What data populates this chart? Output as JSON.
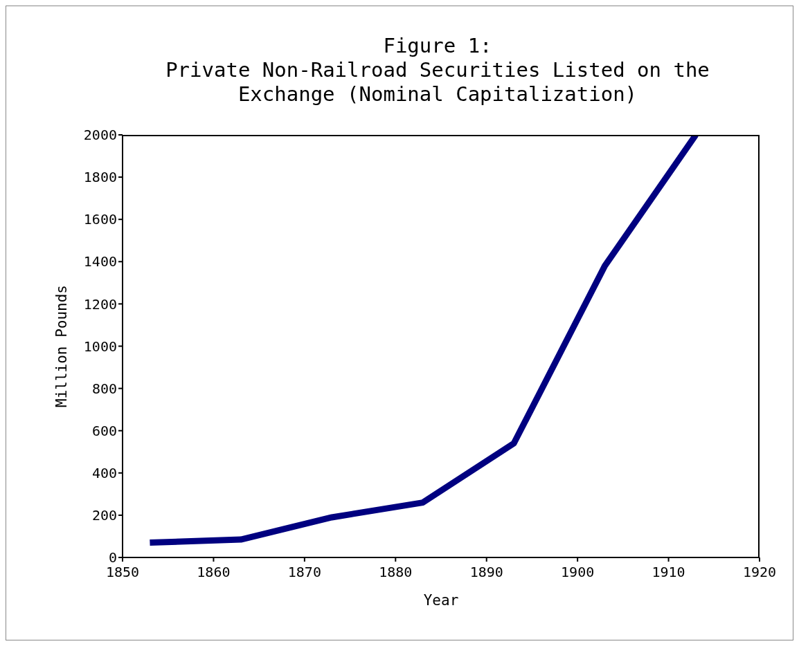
{
  "chart_data": {
    "type": "line",
    "title": "Figure 1:\nPrivate Non-Railroad Securities Listed on the\nExchange (Nominal Capitalization)",
    "xlabel": "Year",
    "ylabel": "Million Pounds",
    "x": [
      1853,
      1863,
      1873,
      1883,
      1893,
      1903,
      1913
    ],
    "series": [
      {
        "color": "#000080",
        "values": [
          70,
          85,
          190,
          260,
          540,
          1380,
          2000
        ]
      }
    ],
    "xlim": [
      1850,
      1920
    ],
    "xticks": [
      1850,
      1860,
      1870,
      1880,
      1890,
      1900,
      1910,
      1920
    ],
    "ylim": [
      0,
      2000
    ],
    "yticks": [
      0,
      200,
      400,
      600,
      800,
      1000,
      1200,
      1400,
      1600,
      1800,
      2000
    ],
    "grid": false,
    "legend": false,
    "marker": "none",
    "line_style": "solid"
  }
}
